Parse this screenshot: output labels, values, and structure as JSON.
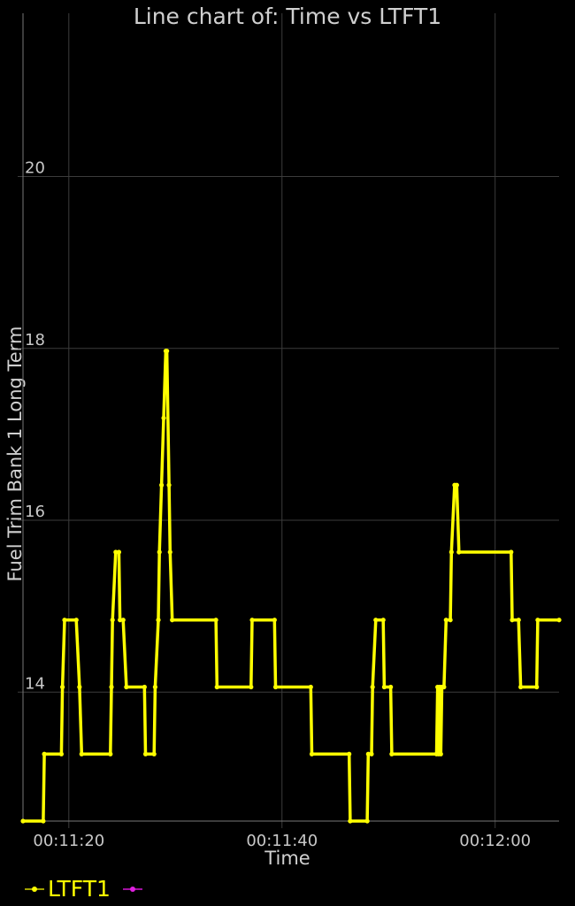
{
  "chart_data": {
    "type": "line",
    "title": "Line chart of: Time vs LTFT1",
    "xlabel": "Time",
    "ylabel": "Fuel Trim Bank 1 Long Term",
    "xlim": [
      "00:11:15.7",
      "00:12:06.0"
    ],
    "ylim": [
      12.5,
      21.9
    ],
    "x_ticks": [
      "00:11:20",
      "00:11:40",
      "00:12:00"
    ],
    "y_ticks": [
      14,
      16,
      18,
      20
    ],
    "grid": true,
    "legend_placement": "bottom-left",
    "series": [
      {
        "name": "LTFT1",
        "color": "#ffff00",
        "points": [
          [
            "00:11:15.7",
            12.5
          ],
          [
            "00:11:17.6",
            12.5
          ],
          [
            "00:11:17.7",
            13.28
          ],
          [
            "00:11:19.3",
            13.28
          ],
          [
            "00:11:19.4",
            14.06
          ],
          [
            "00:11:19.6",
            14.84
          ],
          [
            "00:11:20.7",
            14.84
          ],
          [
            "00:11:21.0",
            14.06
          ],
          [
            "00:11:21.2",
            13.28
          ],
          [
            "00:11:23.9",
            13.28
          ],
          [
            "00:11:24.0",
            14.06
          ],
          [
            "00:11:24.1",
            14.84
          ],
          [
            "00:11:24.4",
            15.63
          ],
          [
            "00:11:24.7",
            15.63
          ],
          [
            "00:11:24.8",
            14.84
          ],
          [
            "00:11:25.1",
            14.84
          ],
          [
            "00:11:25.4",
            14.06
          ],
          [
            "00:11:27.1",
            14.06
          ],
          [
            "00:11:27.2",
            13.28
          ],
          [
            "00:11:28.0",
            13.28
          ],
          [
            "00:11:28.1",
            14.06
          ],
          [
            "00:11:28.4",
            14.84
          ],
          [
            "00:11:28.5",
            15.63
          ],
          [
            "00:11:28.7",
            16.41
          ],
          [
            "00:11:28.9",
            17.19
          ],
          [
            "00:11:29.1",
            17.97
          ],
          [
            "00:11:29.2",
            17.97
          ],
          [
            "00:11:29.4",
            16.41
          ],
          [
            "00:11:29.5",
            15.63
          ],
          [
            "00:11:29.7",
            14.84
          ],
          [
            "00:11:33.8",
            14.84
          ],
          [
            "00:11:33.9",
            14.06
          ],
          [
            "00:11:37.1",
            14.06
          ],
          [
            "00:11:37.2",
            14.84
          ],
          [
            "00:11:39.3",
            14.84
          ],
          [
            "00:11:39.4",
            14.06
          ],
          [
            "00:11:42.7",
            14.06
          ],
          [
            "00:11:42.8",
            13.28
          ],
          [
            "00:11:46.3",
            13.28
          ],
          [
            "00:11:46.4",
            12.5
          ],
          [
            "00:11:48.0",
            12.5
          ],
          [
            "00:11:48.1",
            13.28
          ],
          [
            "00:11:48.4",
            13.28
          ],
          [
            "00:11:48.5",
            14.06
          ],
          [
            "00:11:48.8",
            14.84
          ],
          [
            "00:11:49.5",
            14.84
          ],
          [
            "00:11:49.6",
            14.06
          ],
          [
            "00:11:50.2",
            14.06
          ],
          [
            "00:11:50.3",
            13.28
          ],
          [
            "00:11:54.5",
            13.28
          ],
          [
            "00:11:54.6",
            14.06
          ],
          [
            "00:11:54.7",
            13.28
          ],
          [
            "00:11:54.8",
            14.06
          ],
          [
            "00:11:54.9",
            13.28
          ],
          [
            "00:11:55.0",
            14.06
          ],
          [
            "00:11:55.2",
            14.06
          ],
          [
            "00:11:55.4",
            14.84
          ],
          [
            "00:11:55.8",
            14.84
          ],
          [
            "00:11:55.9",
            15.63
          ],
          [
            "00:11:56.2",
            16.41
          ],
          [
            "00:11:56.4",
            16.41
          ],
          [
            "00:11:56.6",
            15.63
          ],
          [
            "00:12:01.5",
            15.63
          ],
          [
            "00:12:01.6",
            14.84
          ],
          [
            "00:12:02.2",
            14.84
          ],
          [
            "00:12:02.4",
            14.06
          ],
          [
            "00:12:03.9",
            14.06
          ],
          [
            "00:12:04.0",
            14.84
          ],
          [
            "00:12:06.0",
            14.84
          ]
        ]
      },
      {
        "color": "#e020e0",
        "points": []
      }
    ]
  }
}
